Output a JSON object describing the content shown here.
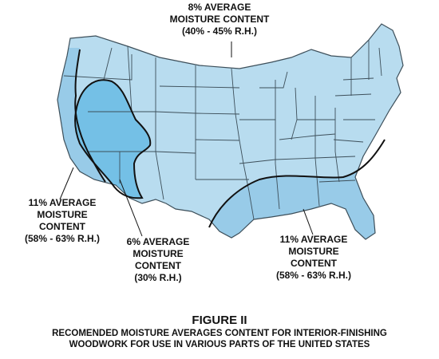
{
  "map": {
    "colors": {
      "dry_zone": "#b8dcef",
      "humid_zone": "#98cbe8",
      "desert_zone": "#74c0e6",
      "state_lines": "#3d4f5a",
      "outline": "#111111"
    },
    "zones": [
      {
        "id": "north",
        "lines": [
          "8% AVERAGE",
          "MOISTURE CONTENT",
          "(40% - 45% R.H.)"
        ]
      },
      {
        "id": "west-coast",
        "lines": [
          "11% AVERAGE",
          "MOISTURE",
          "CONTENT",
          "(58% - 63% R.H.)"
        ]
      },
      {
        "id": "desert",
        "lines": [
          "6% AVERAGE",
          "MOISTURE",
          "CONTENT",
          "(30% R.H.)"
        ]
      },
      {
        "id": "southeast",
        "lines": [
          "11% AVERAGE",
          "MOISTURE",
          "CONTENT",
          "(58% - 63% R.H.)"
        ]
      }
    ]
  },
  "caption": {
    "title": "FIGURE II",
    "lines": [
      "RECOMENDED MOISTURE AVERAGES CONTENT FOR INTERIOR-FINISHING",
      "WOODWORK FOR USE IN VARIOUS PARTS OF THE UNITED STATES"
    ]
  }
}
